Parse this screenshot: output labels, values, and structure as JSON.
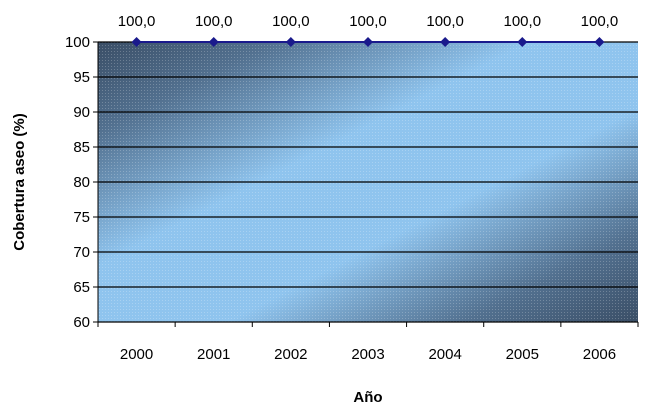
{
  "chart_data": {
    "type": "line",
    "title": "",
    "xlabel": "Año",
    "ylabel": "Cobertura aseo (%)",
    "categories": [
      "2000",
      "2001",
      "2002",
      "2003",
      "2004",
      "2005",
      "2006"
    ],
    "series": [
      {
        "values": [
          100.0,
          100.0,
          100.0,
          100.0,
          100.0,
          100.0,
          100.0
        ],
        "data_labels": [
          "100,0",
          "100,0",
          "100,0",
          "100,0",
          "100,0",
          "100,0",
          "100,0"
        ],
        "color": "#1a1a8c",
        "marker": "diamond"
      }
    ],
    "ylim": [
      60,
      100
    ],
    "yticks": [
      "60",
      "65",
      "70",
      "75",
      "80",
      "85",
      "90",
      "95",
      "100"
    ],
    "grid": true,
    "legend": "none",
    "plot_background": "#8fc4ee",
    "plot_shade": "#3a4e66"
  }
}
